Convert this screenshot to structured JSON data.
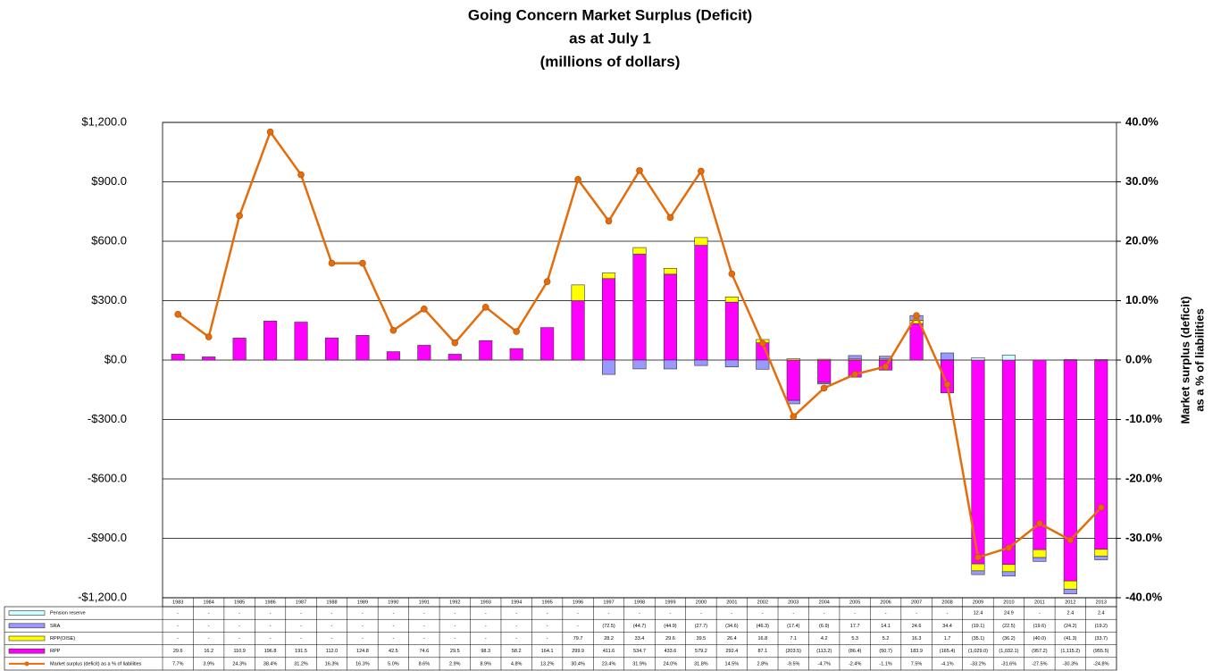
{
  "chart_data": {
    "type": "bar",
    "title": [
      "Going Concern Market Surplus (Deficit)",
      "as at July 1",
      "(millions of dollars)"
    ],
    "y2label": [
      "Market surplus (deficit)",
      "as a % of liabilities"
    ],
    "categories": [
      "1983",
      "1984",
      "1985",
      "1986",
      "1987",
      "1988",
      "1989",
      "1990",
      "1991",
      "1992",
      "1993",
      "1994",
      "1995",
      "1996",
      "1997",
      "1998",
      "1999",
      "2000",
      "2001",
      "2002",
      "2003",
      "2004",
      "2005",
      "2006",
      "2007",
      "2008",
      "2009",
      "2010",
      "2011",
      "2012",
      "2013"
    ],
    "stacked": true,
    "grid": true,
    "ylim": [
      -1200,
      1200
    ],
    "yticks": [
      {
        "value": 1200,
        "label": "$1,200.0"
      },
      {
        "value": 900,
        "label": "$900.0"
      },
      {
        "value": 600,
        "label": "$600.0"
      },
      {
        "value": 300,
        "label": "$300.0"
      },
      {
        "value": 0,
        "label": "$0.0"
      },
      {
        "value": -300,
        "label": "-$300.0"
      },
      {
        "value": -600,
        "label": "-$600.0"
      },
      {
        "value": -900,
        "label": "-$900.0"
      },
      {
        "value": -1200,
        "label": "-$1,200.0"
      }
    ],
    "y2lim": [
      -40,
      40
    ],
    "y2ticks": [
      {
        "value": 40,
        "label": "40.0%"
      },
      {
        "value": 30,
        "label": "30.0%"
      },
      {
        "value": 20,
        "label": "20.0%"
      },
      {
        "value": 10,
        "label": "10.0%"
      },
      {
        "value": 0,
        "label": "0.0%"
      },
      {
        "value": -10,
        "label": "-10.0%"
      },
      {
        "value": -20,
        "label": "-20.0%"
      },
      {
        "value": -30,
        "label": "-30.0%"
      },
      {
        "value": -40,
        "label": "-40.0%"
      }
    ],
    "series": [
      {
        "name": "Pension reserve",
        "color": "#ccffff",
        "values": [
          null,
          null,
          null,
          null,
          null,
          null,
          null,
          null,
          null,
          null,
          null,
          null,
          null,
          null,
          null,
          null,
          null,
          null,
          null,
          null,
          null,
          null,
          null,
          null,
          null,
          null,
          12.4,
          24.9,
          null,
          2.4,
          2.4
        ],
        "value_labels": [
          "-",
          "-",
          "-",
          "-",
          "-",
          "-",
          "-",
          "-",
          "-",
          "-",
          "-",
          "-",
          "-",
          "-",
          "-",
          "-",
          "-",
          "-",
          "-",
          "-",
          "-",
          "-",
          "-",
          "-",
          "-",
          "-",
          "12.4",
          "24.9",
          "-",
          "2.4",
          "2.4"
        ]
      },
      {
        "name": "SRA",
        "color": "#9999ff",
        "values": [
          null,
          null,
          null,
          null,
          null,
          null,
          null,
          null,
          null,
          null,
          null,
          null,
          null,
          null,
          -72.5,
          -44.7,
          -44.9,
          -27.7,
          -34.6,
          -46.3,
          -17.4,
          -6.9,
          17.7,
          14.1,
          24.6,
          34.4,
          -19.1,
          -22.5,
          -19.6,
          -24.2,
          -19.2
        ],
        "value_labels": [
          "-",
          "-",
          "-",
          "-",
          "-",
          "-",
          "-",
          "-",
          "-",
          "-",
          "-",
          "-",
          "-",
          "-",
          "(72.5)",
          "(44.7)",
          "(44.9)",
          "(27.7)",
          "(34.6)",
          "(46.3)",
          "(17.4)",
          "(6.9)",
          "17.7",
          "14.1",
          "24.6",
          "34.4",
          "(19.1)",
          "(22.5)",
          "(19.6)",
          "(24.2)",
          "(19.2)"
        ]
      },
      {
        "name": "RPP(OISE)",
        "color": "#ffff00",
        "values": [
          null,
          null,
          null,
          null,
          null,
          null,
          null,
          null,
          null,
          null,
          null,
          null,
          null,
          79.7,
          28.2,
          33.4,
          29.6,
          39.5,
          26.4,
          16.8,
          7.1,
          4.2,
          5.3,
          5.2,
          16.3,
          1.7,
          -35.1,
          -36.2,
          -40.0,
          -41.3,
          -33.7
        ],
        "value_labels": [
          "-",
          "-",
          "-",
          "-",
          "-",
          "-",
          "-",
          "-",
          "-",
          "-",
          "-",
          "-",
          "-",
          "79.7",
          "28.2",
          "33.4",
          "29.6",
          "39.5",
          "26.4",
          "16.8",
          "7.1",
          "4.2",
          "5.3",
          "5.2",
          "16.3",
          "1.7",
          "(35.1)",
          "(36.2)",
          "(40.0)",
          "(41.3)",
          "(33.7)"
        ]
      },
      {
        "name": "RPP",
        "color": "#ff00ff",
        "values": [
          29.6,
          16.2,
          110.9,
          196.8,
          191.5,
          112.0,
          124.8,
          42.5,
          74.6,
          29.5,
          98.3,
          58.2,
          164.1,
          299.9,
          411.6,
          534.7,
          433.6,
          579.2,
          292.4,
          87.1,
          -203.5,
          -113.2,
          -86.4,
          -50.7,
          183.9,
          -165.4,
          -1029.0,
          -1032.1,
          -957.2,
          -1115.2,
          -955.5
        ],
        "value_labels": [
          "29.6",
          "16.2",
          "110.9",
          "196.8",
          "191.5",
          "112.0",
          "124.8",
          "42.5",
          "74.6",
          "29.5",
          "98.3",
          "58.2",
          "164.1",
          "299.9",
          "411.6",
          "534.7",
          "433.6",
          "579.2",
          "292.4",
          "87.1",
          "(203.5)",
          "(113.2)",
          "(86.4)",
          "(50.7)",
          "183.9",
          "(165.4)",
          "(1,029.0)",
          "(1,032.1)",
          "(957.2)",
          "(1,115.2)",
          "(955.5)"
        ]
      },
      {
        "name": "Market surplus (deficit) as a % of liabilities",
        "color": "#e46c0a",
        "type": "line",
        "axis": "y2",
        "values": [
          7.7,
          3.9,
          24.3,
          38.4,
          31.2,
          16.3,
          16.3,
          5.0,
          8.6,
          2.9,
          8.9,
          4.8,
          13.2,
          30.4,
          23.4,
          31.9,
          24.0,
          31.8,
          14.5,
          2.8,
          -9.5,
          -4.7,
          -2.4,
          -1.1,
          7.5,
          -4.1,
          -33.2,
          -31.6,
          -27.5,
          -30.3,
          -24.8
        ],
        "value_labels": [
          "7.7%",
          "3.9%",
          "24.3%",
          "38.4%",
          "31.2%",
          "16.3%",
          "16.3%",
          "5.0%",
          "8.6%",
          "2.9%",
          "8.9%",
          "4.8%",
          "13.2%",
          "30.4%",
          "23.4%",
          "31.9%",
          "24.0%",
          "31.8%",
          "14.5%",
          "2.8%",
          "-9.5%",
          "-4.7%",
          "-2.4%",
          "-1.1%",
          "7.5%",
          "-4.1%",
          "-33.2%",
          "-31.6%",
          "-27.5%",
          "-30.3%",
          "-24.8%"
        ]
      }
    ]
  }
}
